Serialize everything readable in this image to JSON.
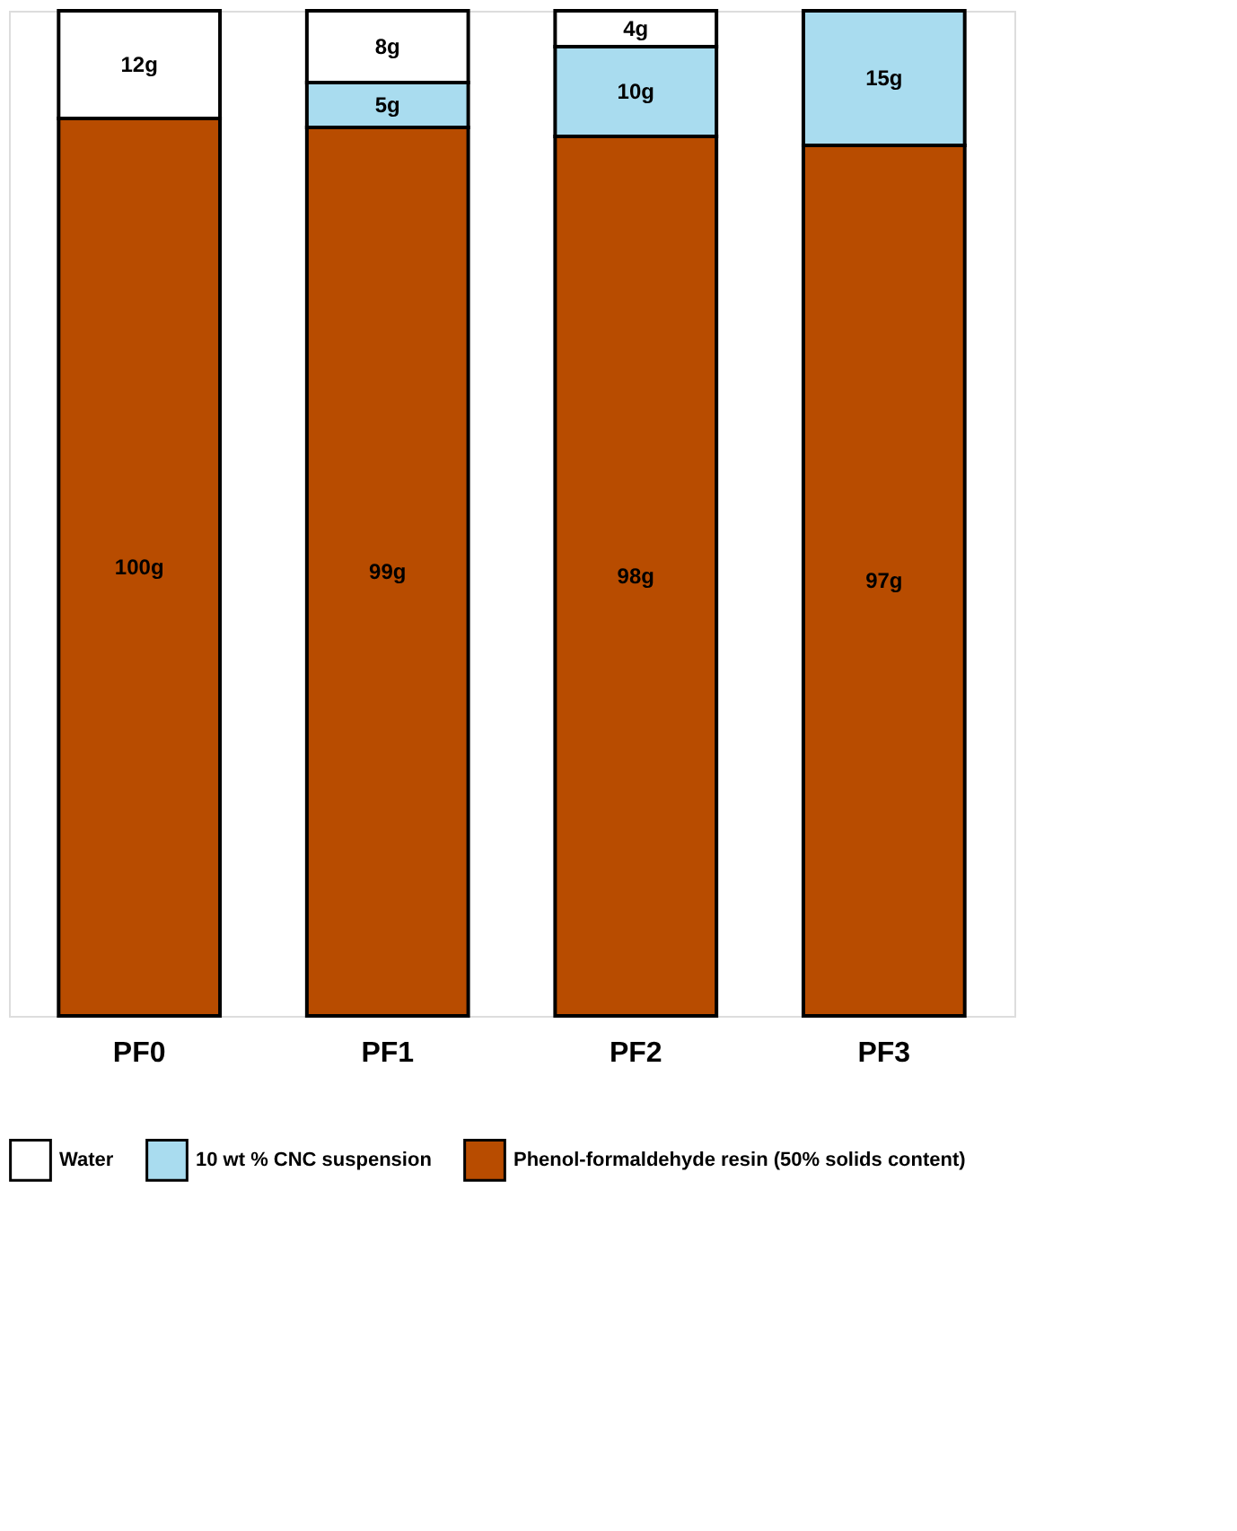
{
  "chart_data": {
    "type": "bar",
    "stacked": true,
    "legend": "bottom",
    "tick_labels": "x",
    "grid": false,
    "categories": [
      "PF0",
      "PF1",
      "PF2",
      "PF3"
    ],
    "series": [
      {
        "name": "Phenol-formaldehyde resin (50% solids content)",
        "color": "#b84c00",
        "values": [
          100,
          99,
          98,
          97
        ],
        "value_labels": [
          "100g",
          "99g",
          "98g",
          "97g"
        ]
      },
      {
        "name": "10 wt % CNC suspension",
        "color": "#a9dcef",
        "values": [
          null,
          5,
          10,
          15
        ],
        "value_labels": [
          null,
          "5g",
          "10g",
          "15g"
        ]
      },
      {
        "name": "Water",
        "color": "#ffffff",
        "values": [
          12,
          8,
          4,
          null
        ],
        "value_labels": [
          "12g",
          "8g",
          "4g",
          null
        ]
      }
    ]
  }
}
